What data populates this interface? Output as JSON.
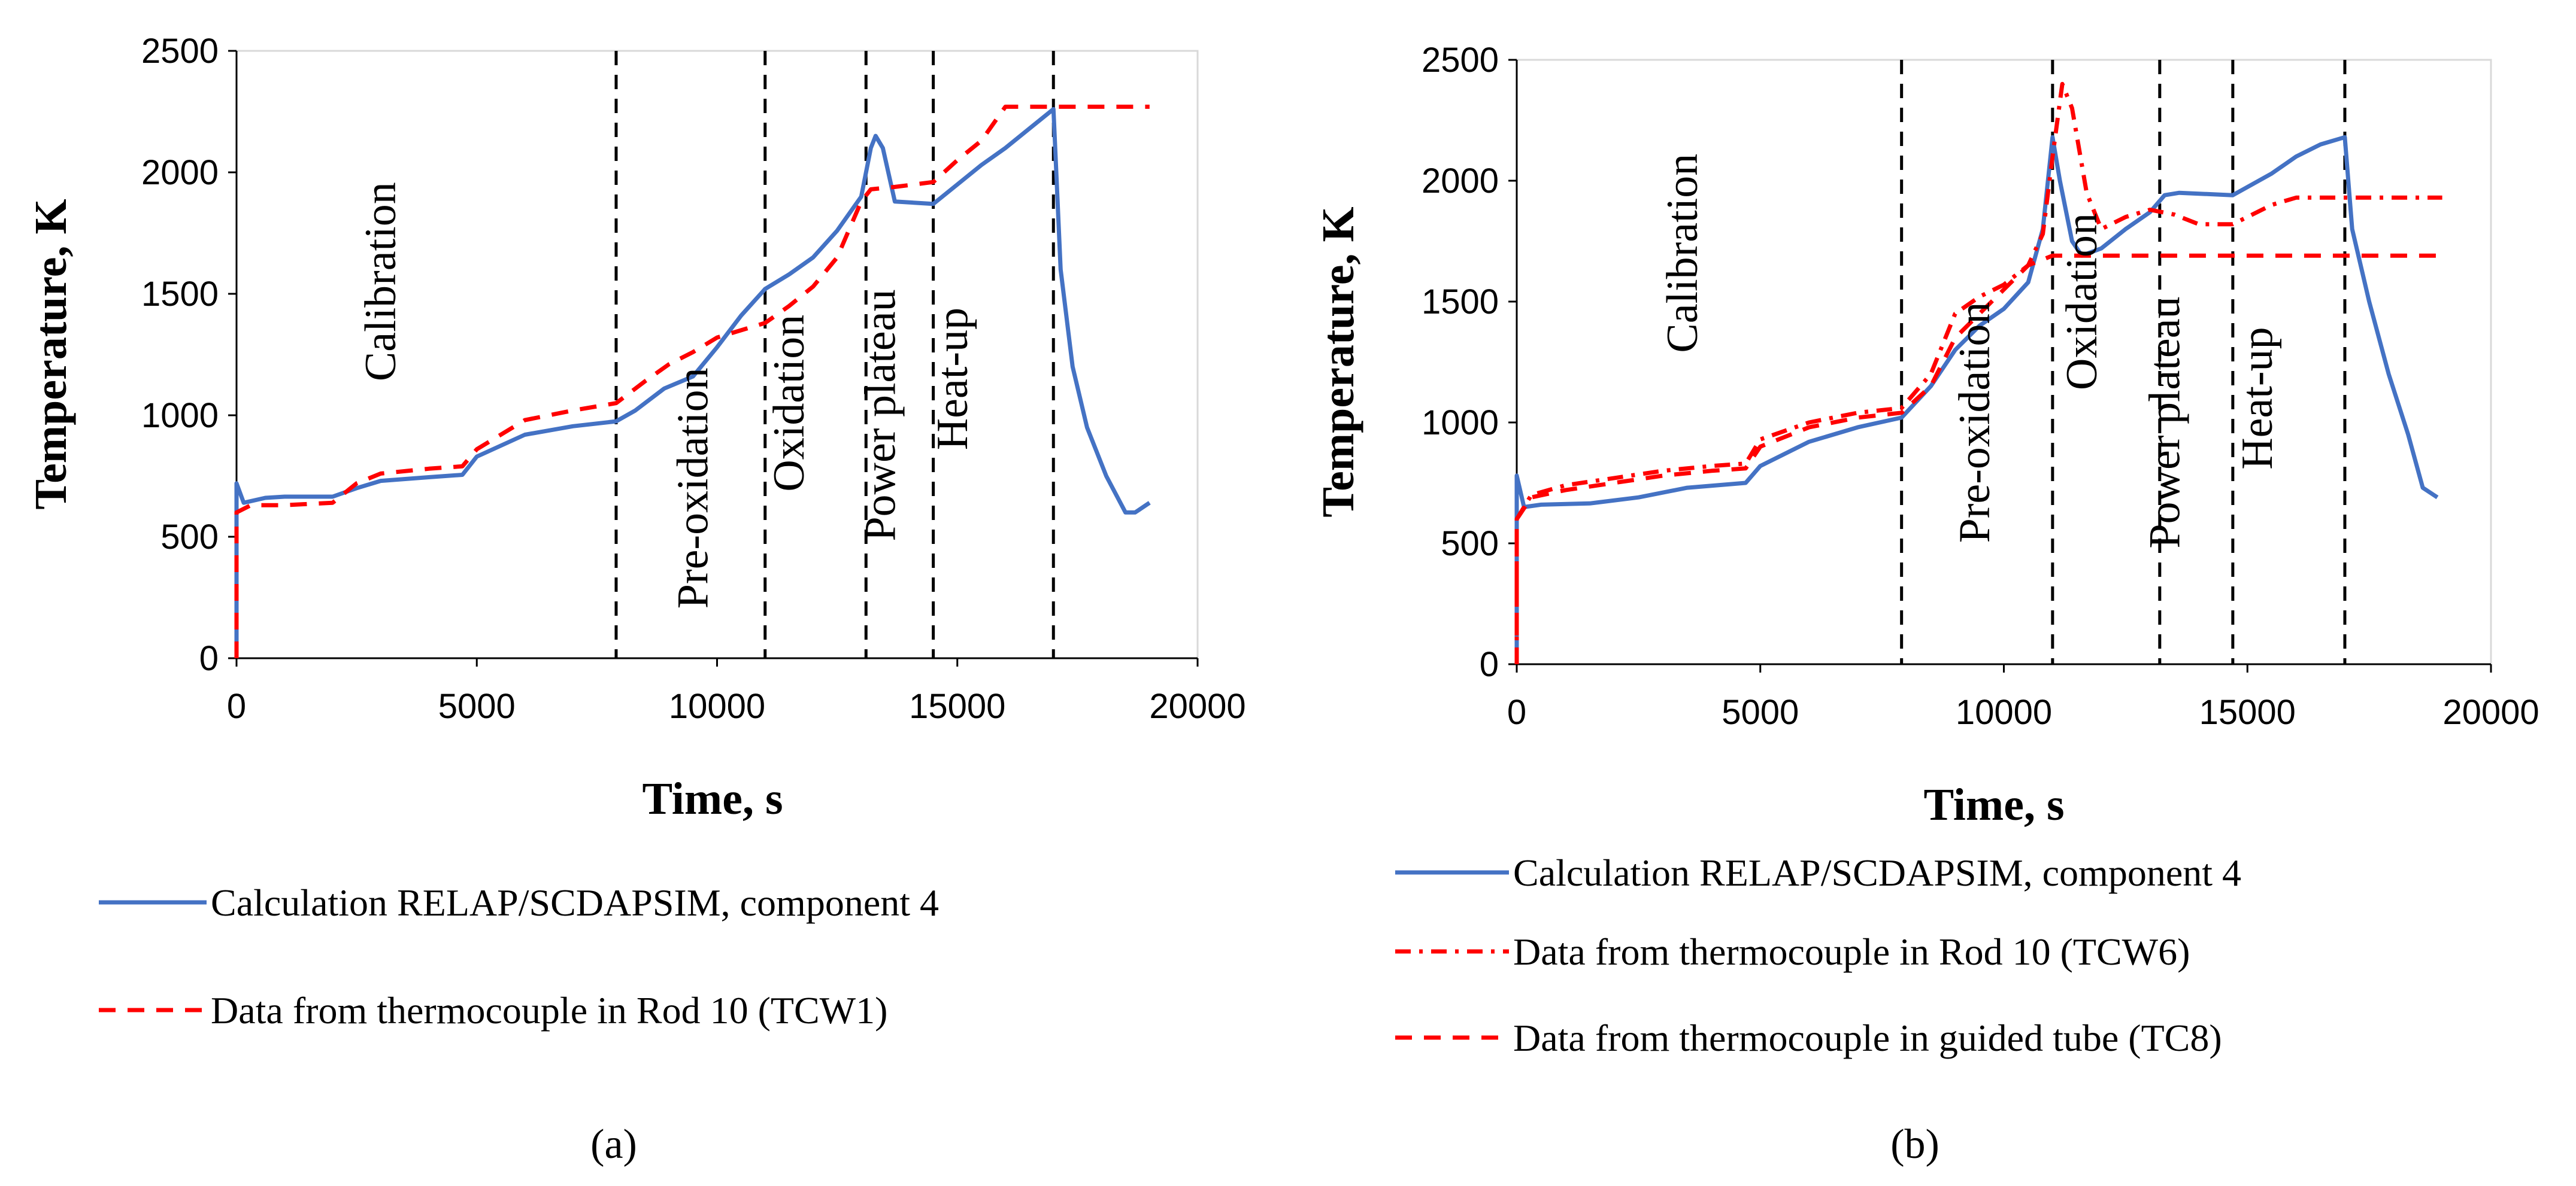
{
  "chart_data": [
    {
      "id": "a",
      "type": "line",
      "caption": "(a)",
      "xlabel": "Time, s",
      "ylabel": "Temperature, K",
      "xlim": [
        0,
        20000
      ],
      "ylim": [
        0,
        2500
      ],
      "xticks": [
        0,
        5000,
        10000,
        15000,
        20000
      ],
      "yticks": [
        0,
        500,
        1000,
        1500,
        2000,
        2500
      ],
      "grid": false,
      "phase_lines": [
        7900,
        11000,
        13100,
        14500,
        17000
      ],
      "phase_labels": [
        {
          "text": "Calibration",
          "x": 3300,
          "y": 1550
        },
        {
          "text": "Pre-oxidation",
          "x": 9800,
          "y": 700
        },
        {
          "text": "Oxidation",
          "x": 11800,
          "y": 1050
        },
        {
          "text": "Power plateau",
          "x": 13700,
          "y": 1000
        },
        {
          "text": "Heat-up",
          "x": 15200,
          "y": 1150
        }
      ],
      "series": [
        {
          "name": "Calculation RELAP/SCDAPSIM, component 4",
          "color": "#4472c4",
          "style": "solid",
          "points": [
            [
              0,
              0
            ],
            [
              0,
              720
            ],
            [
              150,
              640
            ],
            [
              600,
              660
            ],
            [
              1000,
              665
            ],
            [
              2000,
              665
            ],
            [
              2500,
              700
            ],
            [
              3000,
              730
            ],
            [
              4000,
              745
            ],
            [
              4700,
              755
            ],
            [
              5000,
              830
            ],
            [
              6000,
              920
            ],
            [
              7000,
              955
            ],
            [
              7900,
              975
            ],
            [
              8300,
              1020
            ],
            [
              8900,
              1110
            ],
            [
              9500,
              1160
            ],
            [
              10000,
              1280
            ],
            [
              10500,
              1410
            ],
            [
              11000,
              1520
            ],
            [
              11500,
              1580
            ],
            [
              12000,
              1650
            ],
            [
              12500,
              1760
            ],
            [
              13000,
              1900
            ],
            [
              13200,
              2100
            ],
            [
              13300,
              2150
            ],
            [
              13450,
              2100
            ],
            [
              13700,
              1880
            ],
            [
              14500,
              1870
            ],
            [
              15000,
              1950
            ],
            [
              15500,
              2030
            ],
            [
              16000,
              2100
            ],
            [
              16500,
              2180
            ],
            [
              17000,
              2260
            ],
            [
              17150,
              1600
            ],
            [
              17400,
              1200
            ],
            [
              17700,
              950
            ],
            [
              18100,
              750
            ],
            [
              18500,
              600
            ],
            [
              18700,
              600
            ],
            [
              19000,
              640
            ]
          ]
        },
        {
          "name": "Data from thermocouple in Rod 10 (TCW1)",
          "color": "#ff0000",
          "style": "dash",
          "points": [
            [
              0,
              0
            ],
            [
              0,
              600
            ],
            [
              300,
              630
            ],
            [
              1000,
              630
            ],
            [
              2000,
              640
            ],
            [
              2500,
              720
            ],
            [
              3000,
              760
            ],
            [
              4000,
              780
            ],
            [
              4700,
              790
            ],
            [
              5000,
              860
            ],
            [
              6000,
              980
            ],
            [
              7000,
              1020
            ],
            [
              7900,
              1050
            ],
            [
              8500,
              1140
            ],
            [
              9000,
              1210
            ],
            [
              9500,
              1260
            ],
            [
              10000,
              1320
            ],
            [
              11000,
              1380
            ],
            [
              11500,
              1450
            ],
            [
              12000,
              1530
            ],
            [
              12500,
              1650
            ],
            [
              13000,
              1880
            ],
            [
              13200,
              1930
            ],
            [
              13700,
              1940
            ],
            [
              14500,
              1960
            ],
            [
              15000,
              2050
            ],
            [
              15500,
              2130
            ],
            [
              16000,
              2270
            ],
            [
              17000,
              2270
            ],
            [
              18000,
              2270
            ],
            [
              19000,
              2270
            ]
          ]
        }
      ]
    },
    {
      "id": "b",
      "type": "line",
      "caption": "(b)",
      "xlabel": "Time, s",
      "ylabel": "Temperature, K",
      "xlim": [
        0,
        20000
      ],
      "ylim": [
        0,
        2500
      ],
      "xticks": [
        0,
        5000,
        10000,
        15000,
        20000
      ],
      "yticks": [
        0,
        500,
        1000,
        1500,
        2000,
        2500
      ],
      "grid": false,
      "phase_lines": [
        7900,
        11000,
        13200,
        14700,
        17000
      ],
      "phase_labels": [
        {
          "text": "Calibration",
          "x": 3700,
          "y": 1700
        },
        {
          "text": "Pre-oxidation",
          "x": 9700,
          "y": 1000
        },
        {
          "text": "Oxidation",
          "x": 11900,
          "y": 1500
        },
        {
          "text": "Power plateau",
          "x": 13600,
          "y": 1000
        },
        {
          "text": "Heat-up",
          "x": 15500,
          "y": 1100
        }
      ],
      "series": [
        {
          "name": "Calculation RELAP/SCDAPSIM, component 4",
          "color": "#4472c4",
          "style": "solid",
          "points": [
            [
              0,
              0
            ],
            [
              0,
              780
            ],
            [
              150,
              650
            ],
            [
              500,
              660
            ],
            [
              1500,
              665
            ],
            [
              2500,
              690
            ],
            [
              3500,
              730
            ],
            [
              4700,
              750
            ],
            [
              5000,
              820
            ],
            [
              6000,
              920
            ],
            [
              7000,
              980
            ],
            [
              7900,
              1020
            ],
            [
              8500,
              1150
            ],
            [
              9000,
              1300
            ],
            [
              9500,
              1400
            ],
            [
              10000,
              1470
            ],
            [
              10500,
              1580
            ],
            [
              10800,
              1800
            ],
            [
              11000,
              2180
            ],
            [
              11150,
              2000
            ],
            [
              11400,
              1750
            ],
            [
              11600,
              1690
            ],
            [
              12000,
              1720
            ],
            [
              12500,
              1800
            ],
            [
              13000,
              1870
            ],
            [
              13300,
              1940
            ],
            [
              13600,
              1950
            ],
            [
              14700,
              1940
            ],
            [
              15500,
              2030
            ],
            [
              16000,
              2100
            ],
            [
              16500,
              2150
            ],
            [
              17000,
              2180
            ],
            [
              17150,
              1800
            ],
            [
              17500,
              1500
            ],
            [
              17900,
              1200
            ],
            [
              18300,
              950
            ],
            [
              18600,
              730
            ],
            [
              18900,
              690
            ]
          ]
        },
        {
          "name": "Data from thermocouple in Rod 10 (TCW6)",
          "color": "#ff0000",
          "style": "dashdot",
          "points": [
            [
              0,
              0
            ],
            [
              0,
              600
            ],
            [
              300,
              700
            ],
            [
              1000,
              740
            ],
            [
              2000,
              770
            ],
            [
              3000,
              800
            ],
            [
              4000,
              820
            ],
            [
              4700,
              830
            ],
            [
              5000,
              930
            ],
            [
              6000,
              1000
            ],
            [
              7000,
              1040
            ],
            [
              7900,
              1060
            ],
            [
              8500,
              1200
            ],
            [
              9000,
              1450
            ],
            [
              9500,
              1520
            ],
            [
              10000,
              1570
            ],
            [
              10500,
              1650
            ],
            [
              10800,
              1780
            ],
            [
              11000,
              2100
            ],
            [
              11200,
              2400
            ],
            [
              11400,
              2300
            ],
            [
              11700,
              1950
            ],
            [
              12000,
              1800
            ],
            [
              12500,
              1850
            ],
            [
              13000,
              1880
            ],
            [
              13500,
              1860
            ],
            [
              14000,
              1820
            ],
            [
              14700,
              1820
            ],
            [
              15500,
              1900
            ],
            [
              16000,
              1930
            ],
            [
              17000,
              1930
            ],
            [
              18000,
              1930
            ],
            [
              19000,
              1930
            ]
          ]
        },
        {
          "name": "Data from thermocouple in guided tube (TC8)",
          "color": "#ff0000",
          "style": "dash",
          "points": [
            [
              0,
              0
            ],
            [
              0,
              600
            ],
            [
              300,
              690
            ],
            [
              1000,
              720
            ],
            [
              2000,
              750
            ],
            [
              3000,
              780
            ],
            [
              4000,
              800
            ],
            [
              4700,
              810
            ],
            [
              5000,
              900
            ],
            [
              6000,
              980
            ],
            [
              7000,
              1020
            ],
            [
              7900,
              1040
            ],
            [
              8500,
              1150
            ],
            [
              9000,
              1350
            ],
            [
              9500,
              1450
            ],
            [
              10000,
              1550
            ],
            [
              10500,
              1650
            ],
            [
              11000,
              1690
            ],
            [
              12000,
              1690
            ],
            [
              13000,
              1690
            ],
            [
              15000,
              1690
            ],
            [
              17000,
              1690
            ],
            [
              18500,
              1690
            ],
            [
              19000,
              1690
            ]
          ]
        }
      ]
    }
  ]
}
